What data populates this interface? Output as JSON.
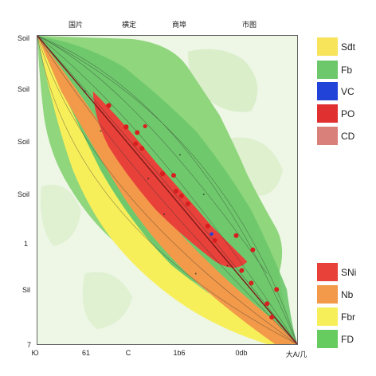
{
  "top_labels": [
    "国片",
    "横定",
    "商埠",
    "市图"
  ],
  "left_labels": [
    "Soil",
    "Soil",
    "Soil",
    "Soil",
    "1",
    "Sil",
    "7"
  ],
  "bottom_labels": [
    "Ю",
    "61",
    "C",
    "1b6",
    "0db",
    "大A/几"
  ],
  "legend_top": [
    {
      "label": "Sd̈t",
      "color": "#f7e45a"
    },
    {
      "label": "Fb",
      "color": "#6cc86a"
    },
    {
      "label": "VC",
      "color": "#2243d8"
    },
    {
      "label": "PO",
      "color": "#e03030"
    },
    {
      "label": "CD",
      "color": "#d9807a"
    }
  ],
  "legend_bottom": [
    {
      "label": "SNi",
      "color": "#e8413a"
    },
    {
      "label": "Nb",
      "color": "#f29a4a"
    },
    {
      "label": "Fbr",
      "color": "#f7ef5a"
    },
    {
      "label": "FD",
      "color": "#66cc60"
    }
  ],
  "colors": {
    "land": "#eef6e6",
    "green_zone": "#5fc85a",
    "red_zone": "#e8413a",
    "orange_zone": "#f29a4a",
    "yellow_zone": "#f7ef5a",
    "sample_point": "#d81e1e"
  }
}
